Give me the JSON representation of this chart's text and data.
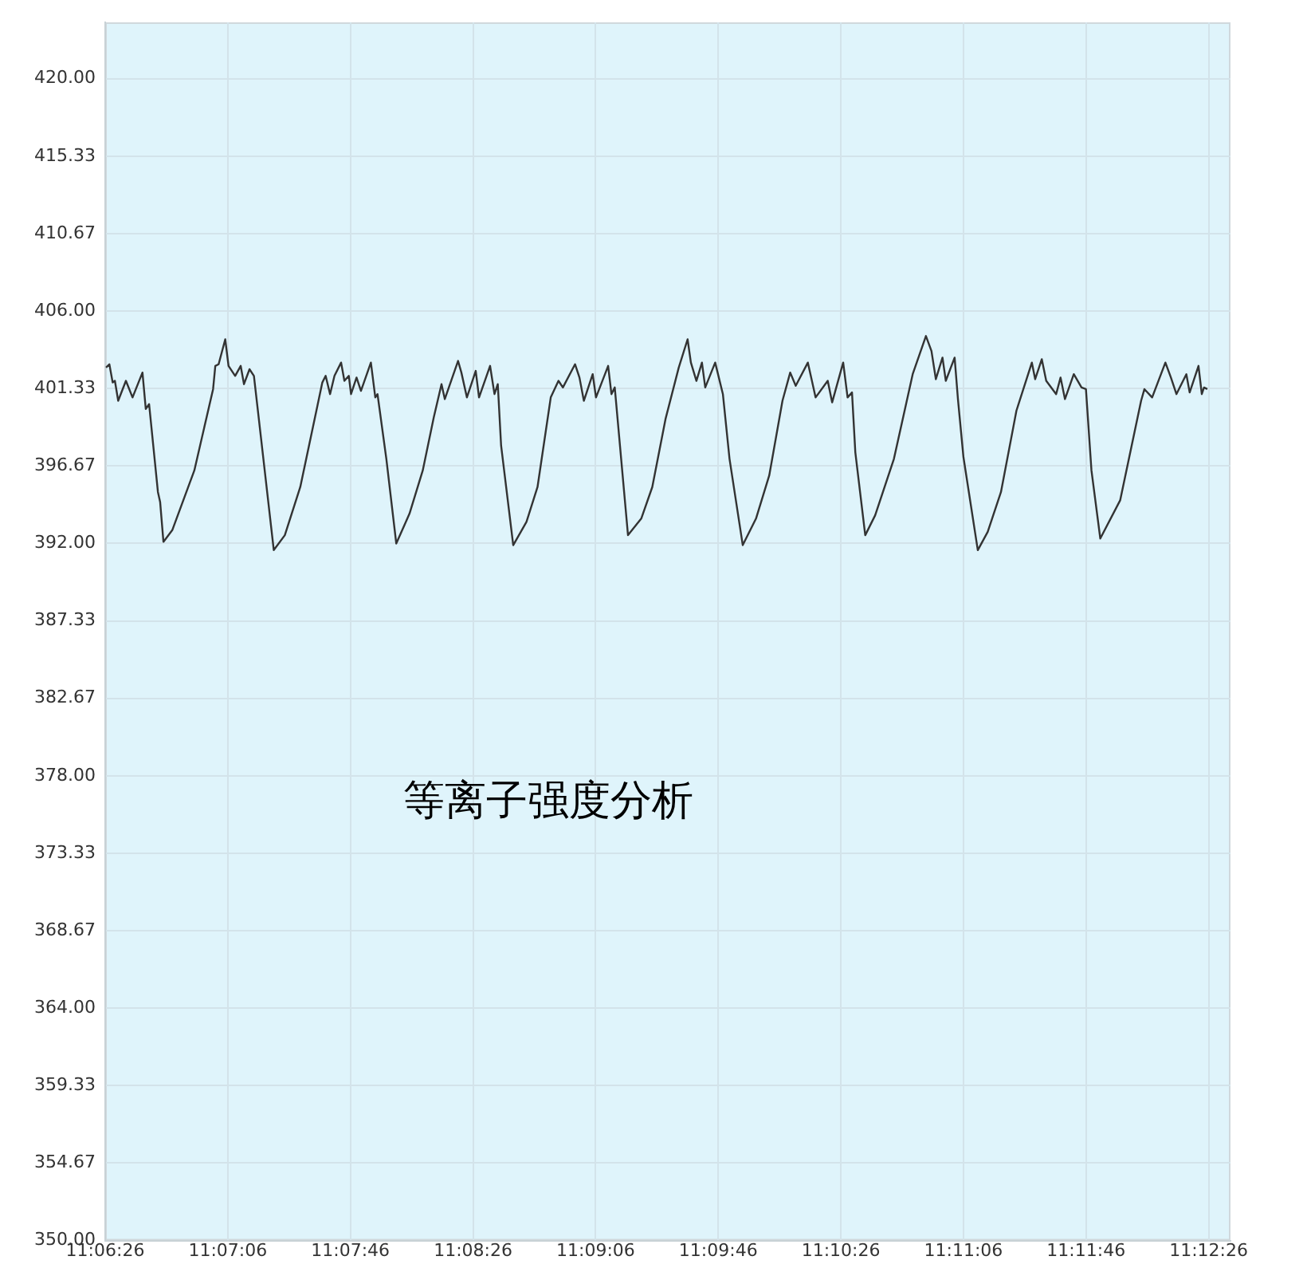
{
  "chart_data": {
    "type": "line",
    "annotations": [
      "等离子强度分析"
    ],
    "x": [
      11.1073,
      11.1076,
      11.1079,
      11.1081,
      11.1084,
      11.1091,
      11.1097,
      11.1106,
      11.1109,
      11.1112,
      11.112,
      11.1122,
      11.1125,
      11.1133,
      11.1153,
      11.117,
      11.1172,
      11.1175,
      11.1181,
      11.1184,
      11.119,
      11.1195,
      11.1198,
      11.1203,
      11.1207,
      11.1225,
      11.1235,
      11.1249,
      11.1269,
      11.1272,
      11.1276,
      11.128,
      11.1286,
      11.1289,
      11.1293,
      11.1295,
      11.13,
      11.1304,
      11.1313,
      11.1317,
      11.1319,
      11.1327,
      11.1336,
      11.1348,
      11.136,
      11.137,
      11.1377,
      11.138,
      11.1392,
      11.1395,
      11.14,
      11.1408,
      11.1411,
      11.1421,
      11.1425,
      11.1428,
      11.1431,
      11.1442,
      11.1454,
      11.1464,
      11.1476,
      11.1483,
      11.1487,
      11.1498,
      11.1502,
      11.1506,
      11.1514,
      11.1517,
      11.1528,
      11.1531,
      11.1534,
      11.1546,
      11.1558,
      11.1568,
      11.158,
      11.1592,
      11.16,
      11.1603,
      11.1608,
      11.1613,
      11.1616,
      11.1625,
      11.1632,
      11.1638,
      11.165,
      11.1662,
      11.1674,
      11.1686,
      11.1693,
      11.1698,
      11.1709,
      11.1716,
      11.1727,
      11.1731,
      11.1741,
      11.1745,
      11.1749,
      11.1752,
      11.1761,
      11.177,
      11.1787,
      11.1804,
      11.1816,
      11.1821,
      11.1825,
      11.1831,
      11.1834,
      11.1842,
      11.1845,
      11.185,
      11.1863,
      11.1872,
      11.1884,
      11.1898,
      11.1912,
      11.1915,
      11.1921,
      11.1925,
      11.1934,
      11.1938,
      11.1942,
      11.195,
      11.1957,
      11.1961,
      11.1966,
      11.1974,
      11.1992,
      11.2011,
      11.2014,
      11.2021,
      11.2033,
      11.2038,
      11.2043,
      11.2052,
      11.2055,
      11.2063,
      11.2066,
      11.2068,
      11.2071
    ],
    "series": [
      {
        "color": "#333333",
        "values": [
          402.6,
          402.8,
          401.7,
          401.8,
          400.6,
          401.8,
          400.8,
          402.3,
          400.1,
          400.4,
          395.1,
          394.5,
          392.1,
          392.8,
          396.4,
          401.3,
          402.7,
          402.8,
          404.3,
          402.7,
          402.1,
          402.7,
          401.6,
          402.5,
          402.1,
          391.6,
          392.5,
          395.4,
          401.7,
          402.1,
          401.0,
          402.1,
          402.9,
          401.8,
          402.1,
          401.0,
          402.0,
          401.2,
          402.9,
          400.8,
          401.0,
          397.1,
          392.0,
          393.8,
          396.4,
          399.6,
          401.6,
          400.7,
          403.0,
          402.3,
          400.8,
          402.4,
          400.8,
          402.7,
          401.0,
          401.6,
          397.9,
          391.9,
          393.3,
          395.4,
          400.8,
          401.8,
          401.4,
          402.8,
          402.0,
          400.6,
          402.2,
          400.8,
          402.7,
          401.0,
          401.4,
          392.5,
          393.5,
          395.4,
          399.5,
          402.6,
          404.3,
          402.9,
          401.8,
          402.9,
          401.4,
          402.9,
          401.0,
          397.1,
          391.9,
          393.5,
          396.1,
          400.6,
          402.3,
          401.5,
          402.9,
          400.8,
          401.8,
          400.5,
          402.9,
          400.8,
          401.1,
          397.5,
          392.5,
          393.7,
          397.1,
          402.2,
          404.5,
          403.6,
          401.9,
          403.2,
          401.8,
          403.2,
          400.7,
          397.2,
          391.6,
          392.7,
          395.1,
          400.0,
          402.9,
          401.9,
          403.1,
          401.8,
          401.0,
          402.0,
          400.7,
          402.2,
          401.4,
          401.3,
          396.4,
          392.3,
          394.6,
          400.6,
          401.3,
          400.8,
          402.9,
          402.0,
          401.0,
          402.2,
          401.1,
          402.7,
          401.0,
          401.4,
          401.3
        ]
      }
    ],
    "xlim": [
      11.107222,
      11.2092
    ],
    "xticks": [
      {
        "value": 11.107222,
        "label": "11:06:26"
      },
      {
        "value": 11.118333,
        "label": "11:07:06"
      },
      {
        "value": 11.129444,
        "label": "11:07:46"
      },
      {
        "value": 11.140556,
        "label": "11:08:26"
      },
      {
        "value": 11.151667,
        "label": "11:09:06"
      },
      {
        "value": 11.162778,
        "label": "11:09:46"
      },
      {
        "value": 11.173889,
        "label": "11:10:26"
      },
      {
        "value": 11.185,
        "label": "11:11:06"
      },
      {
        "value": 11.196111,
        "label": "11:11:46"
      },
      {
        "value": 11.207222,
        "label": "11:12:26"
      }
    ],
    "ylim": [
      350,
      423.4
    ],
    "yticks": [
      {
        "value": 350,
        "label": "350.00"
      },
      {
        "value": 354.6667,
        "label": "354.67"
      },
      {
        "value": 359.3333,
        "label": "359.33"
      },
      {
        "value": 364,
        "label": "364.00"
      },
      {
        "value": 368.6667,
        "label": "368.67"
      },
      {
        "value": 373.3333,
        "label": "373.33"
      },
      {
        "value": 378,
        "label": "378.00"
      },
      {
        "value": 382.6667,
        "label": "382.67"
      },
      {
        "value": 387.3333,
        "label": "387.33"
      },
      {
        "value": 392,
        "label": "392.00"
      },
      {
        "value": 396.6667,
        "label": "396.67"
      },
      {
        "value": 401.3333,
        "label": "401.33"
      },
      {
        "value": 406,
        "label": "406.00"
      },
      {
        "value": 410.6667,
        "label": "410.67"
      },
      {
        "value": 415.3333,
        "label": "415.33"
      },
      {
        "value": 420,
        "label": "420.00"
      }
    ],
    "grid": true,
    "marker": "none",
    "line_style": "solid",
    "legend": false
  }
}
